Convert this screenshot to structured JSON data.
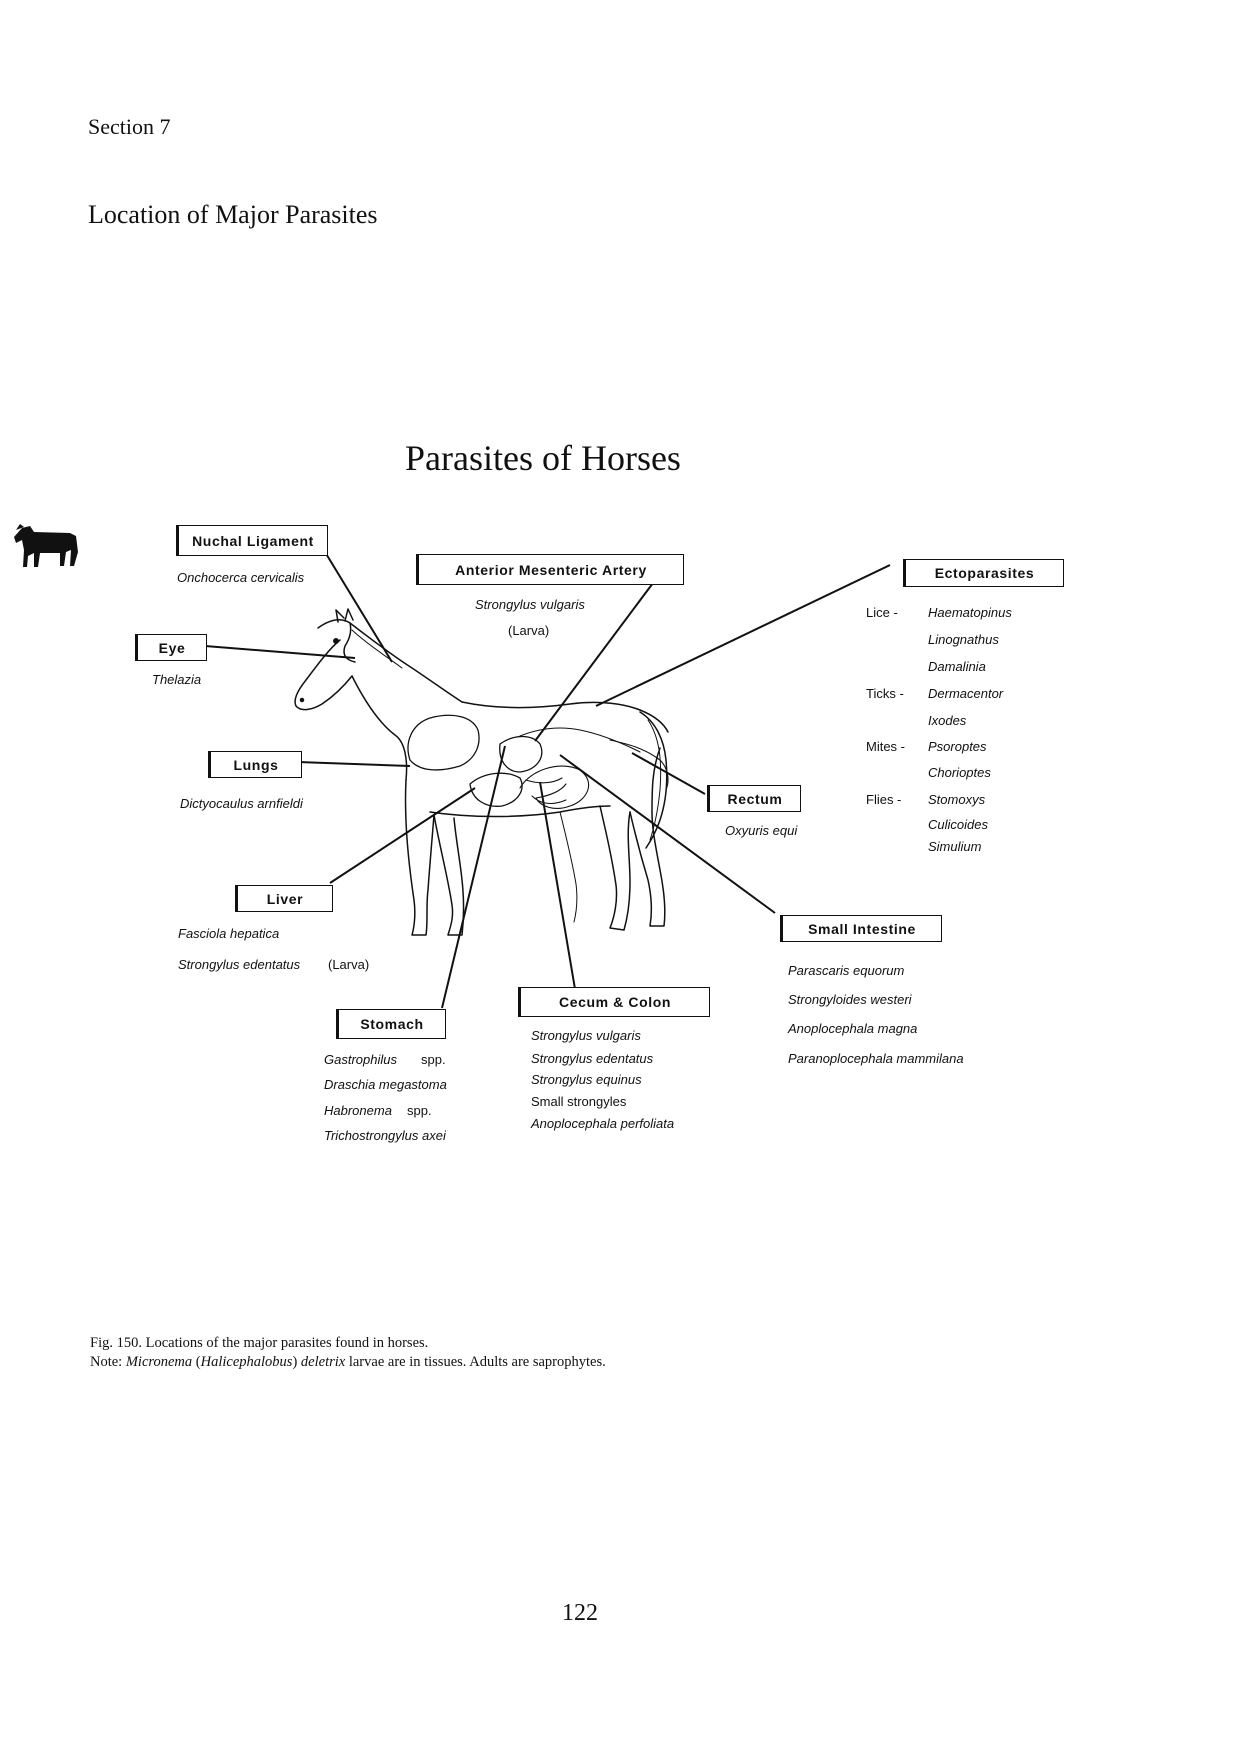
{
  "section_label": "Section 7",
  "heading": "Location of Major Parasites",
  "diagram": {
    "title": "Parasites of Horses",
    "boxes": {
      "nuchal_ligament": {
        "label": "Nuchal Ligament",
        "parasites": [
          "Onchocerca cervicalis"
        ]
      },
      "anterior_mesenteric_artery": {
        "label": "Anterior Mesenteric Artery",
        "parasites": [
          "Strongylus vulgaris"
        ],
        "note": "(Larva)"
      },
      "ectoparasites": {
        "label": "Ectoparasites",
        "groups": [
          {
            "type": "Lice -",
            "genera": [
              "Haematopinus",
              "Linognathus",
              "Damalinia"
            ]
          },
          {
            "type": "Ticks -",
            "genera": [
              "Dermacentor",
              "Ixodes"
            ]
          },
          {
            "type": "Mites -",
            "genera": [
              "Psoroptes",
              "Chorioptes"
            ]
          },
          {
            "type": "Flies -",
            "genera": [
              "Stomoxys",
              "Culicoides",
              "Simulium"
            ]
          }
        ]
      },
      "eye": {
        "label": "Eye",
        "parasites": [
          "Thelazia"
        ]
      },
      "lungs": {
        "label": "Lungs",
        "parasites": [
          "Dictyocaulus arnfieldi"
        ]
      },
      "rectum": {
        "label": "Rectum",
        "parasites": [
          "Oxyuris equi"
        ]
      },
      "liver": {
        "label": "Liver",
        "parasites": [
          "Fasciola hepatica",
          "Strongylus edentatus"
        ],
        "note": "(Larva)"
      },
      "small_intestine": {
        "label": "Small Intestine",
        "parasites": [
          "Parascaris equorum",
          "Strongyloides westeri",
          "Anoplocephala magna",
          "Paranoplocephala mammilana"
        ]
      },
      "cecum_colon": {
        "label": "Cecum & Colon",
        "parasites": [
          "Strongylus vulgaris",
          "Strongylus edentatus",
          "Strongylus equinus"
        ],
        "plain_item": "Small strongyles",
        "parasites_after": [
          "Anoplocephala perfoliata"
        ]
      },
      "stomach": {
        "label": "Stomach",
        "items": [
          {
            "name": "Gastrophilus",
            "suffix": "spp."
          },
          {
            "name": "Draschia megastoma",
            "suffix": ""
          },
          {
            "name": "Habronema",
            "suffix": "spp."
          },
          {
            "name": "Trichostrongylus axei",
            "suffix": ""
          }
        ]
      }
    }
  },
  "caption": {
    "line1": "Fig. 150. Locations of the major parasites found in horses.",
    "note_prefix": "Note: ",
    "note_genus": "Micronema",
    "note_paren_open": " (",
    "note_alt_genus": "Halicephalobus",
    "note_paren_close": ") ",
    "note_species": "deletrix",
    "note_rest": " larvae are in tissues. Adults are saprophytes."
  },
  "page_number": "122",
  "colors": {
    "ink": "#111111",
    "paper": "#ffffff"
  },
  "icons": [
    "horse-silhouette-icon",
    "horse-anatomy-illustration"
  ]
}
